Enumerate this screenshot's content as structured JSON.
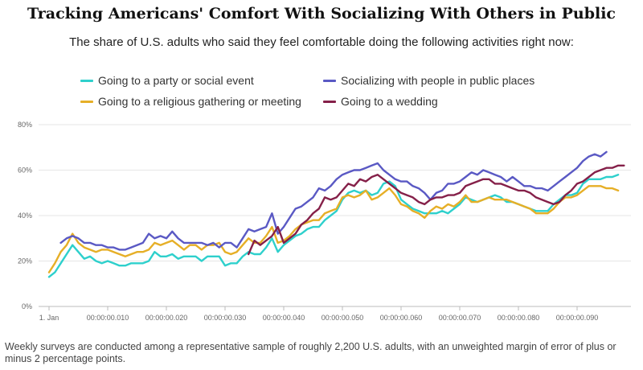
{
  "header": {
    "title": "Tracking Americans' Comfort With Socializing With Others in Public",
    "subtitle": "The share of U.S. adults who said they feel comfortable doing the following activities right now:"
  },
  "footnote": "Weekly surveys are conducted among a representative sample of roughly 2,200 U.S. adults, with an unweighted margin of error of plus or minus 2 percentage points.",
  "chart_data": {
    "type": "line",
    "title": "Tracking Americans' Comfort With Socializing With Others in Public",
    "xlabel": "",
    "ylabel": "",
    "ylim": [
      0,
      80
    ],
    "yticks": [
      "0%",
      "20%",
      "40%",
      "60%",
      "80%"
    ],
    "xticks": [
      {
        "x": 0,
        "label": "1. Jan"
      },
      {
        "x": 10,
        "label": "00:00:00.010"
      },
      {
        "x": 20,
        "label": "00:00:00.020"
      },
      {
        "x": 30,
        "label": "00:00:00.030"
      },
      {
        "x": 40,
        "label": "00:00:00.040"
      },
      {
        "x": 50,
        "label": "00:00:00.050"
      },
      {
        "x": 60,
        "label": "00:00:00.060"
      },
      {
        "x": 70,
        "label": "00:00:00.070"
      },
      {
        "x": 80,
        "label": "00:00:00.080"
      },
      {
        "x": 90,
        "label": "00:00:00.090"
      }
    ],
    "series": [
      {
        "name": "Going to a party or social event",
        "color": "#2ed0cc",
        "start": 0,
        "values": [
          13,
          15,
          19,
          23,
          27,
          24,
          21,
          22,
          20,
          19,
          20,
          19,
          18,
          18,
          19,
          19,
          19,
          20,
          24,
          22,
          22,
          23,
          21,
          22,
          22,
          22,
          20,
          22,
          22,
          22,
          18,
          19,
          19,
          22,
          24,
          23,
          23,
          26,
          30,
          24,
          27,
          29,
          31,
          32,
          34,
          35,
          35,
          38,
          40,
          42,
          47,
          50,
          51,
          50,
          51,
          49,
          50,
          54,
          55,
          53,
          47,
          45,
          43,
          42,
          41,
          41,
          41,
          42,
          41,
          43,
          45,
          48,
          47,
          46,
          47,
          48,
          49,
          48,
          46,
          46,
          45,
          44,
          43,
          42,
          42,
          42,
          45,
          47,
          49,
          49,
          50,
          54,
          56,
          56,
          56,
          57,
          57,
          58
        ]
      },
      {
        "name": "Going to a religious gathering or meeting",
        "color": "#e6af27",
        "start": 0,
        "values": [
          15,
          19,
          24,
          27,
          32,
          28,
          26,
          25,
          24,
          25,
          25,
          24,
          23,
          22,
          23,
          24,
          24,
          25,
          28,
          27,
          28,
          29,
          27,
          25,
          27,
          27,
          25,
          27,
          27,
          28,
          24,
          23,
          24,
          27,
          30,
          28,
          28,
          31,
          35,
          28,
          29,
          31,
          34,
          36,
          37,
          38,
          38,
          41,
          42,
          43,
          48,
          49,
          48,
          49,
          51,
          47,
          48,
          50,
          52,
          49,
          45,
          44,
          42,
          41,
          39,
          42,
          44,
          43,
          45,
          44,
          46,
          49,
          46,
          46,
          47,
          48,
          47,
          47,
          47,
          46,
          45,
          44,
          43,
          41,
          41,
          41,
          43,
          46,
          48,
          48,
          49,
          51,
          53,
          53,
          53,
          52,
          52,
          51
        ]
      },
      {
        "name": "Socializing with people in public places",
        "color": "#5a59c4",
        "start": 2,
        "values": [
          28,
          30,
          31,
          30,
          28,
          28,
          27,
          27,
          26,
          26,
          25,
          25,
          26,
          27,
          28,
          32,
          30,
          31,
          30,
          33,
          30,
          28,
          28,
          28,
          28,
          27,
          28,
          26,
          28,
          28,
          26,
          30,
          34,
          33,
          34,
          35,
          41,
          32,
          35,
          39,
          43,
          44,
          46,
          48,
          52,
          51,
          53,
          56,
          58,
          59,
          60,
          60,
          61,
          62,
          63,
          60,
          58,
          56,
          55,
          55,
          53,
          52,
          50,
          47,
          50,
          51,
          54,
          54,
          55,
          57,
          59,
          58,
          60,
          59,
          58,
          57,
          55,
          57,
          55,
          53,
          53,
          52,
          52,
          51,
          53,
          55,
          57,
          59,
          61,
          64,
          66,
          67,
          66,
          68
        ]
      },
      {
        "name": "Going to a wedding",
        "color": "#852049",
        "start": 34,
        "values": [
          23,
          29,
          27,
          29,
          31,
          35,
          28,
          30,
          32,
          36,
          38,
          41,
          43,
          48,
          47,
          48,
          51,
          54,
          53,
          56,
          55,
          57,
          58,
          56,
          54,
          52,
          50,
          49,
          48,
          46,
          45,
          47,
          48,
          48,
          49,
          49,
          50,
          53,
          54,
          55,
          56,
          56,
          54,
          54,
          53,
          52,
          51,
          51,
          50,
          48,
          47,
          46,
          45,
          46,
          49,
          51,
          54,
          55,
          57,
          59,
          60,
          61,
          61,
          62,
          62
        ]
      }
    ]
  }
}
